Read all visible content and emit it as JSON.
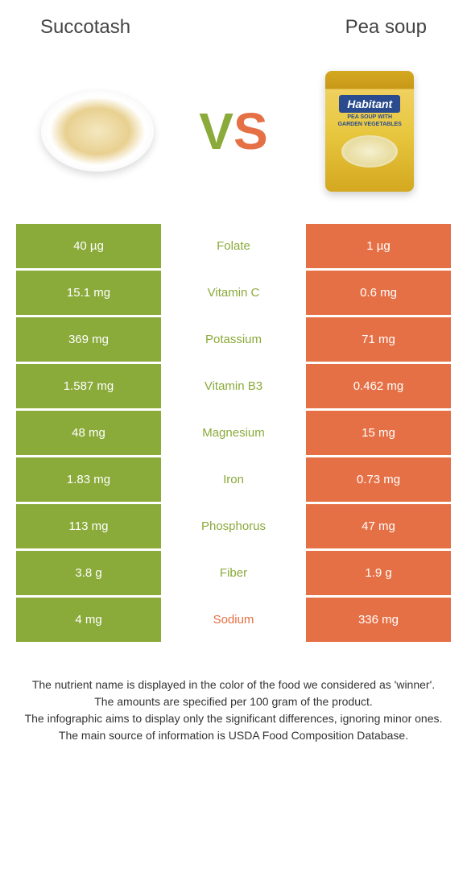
{
  "header": {
    "left": "Succotash",
    "right": "Pea soup"
  },
  "vs": {
    "v": "V",
    "s": "S"
  },
  "can": {
    "brand": "Habitant",
    "sub1": "PEA SOUP WITH",
    "sub2": "GARDEN VEGETABLES"
  },
  "colors": {
    "left": "#8aaa3a",
    "right": "#e67045"
  },
  "rows": [
    {
      "left": "40 µg",
      "mid": "Folate",
      "right": "1 µg",
      "winner": "left"
    },
    {
      "left": "15.1 mg",
      "mid": "Vitamin C",
      "right": "0.6 mg",
      "winner": "left"
    },
    {
      "left": "369 mg",
      "mid": "Potassium",
      "right": "71 mg",
      "winner": "left"
    },
    {
      "left": "1.587 mg",
      "mid": "Vitamin B3",
      "right": "0.462 mg",
      "winner": "left"
    },
    {
      "left": "48 mg",
      "mid": "Magnesium",
      "right": "15 mg",
      "winner": "left"
    },
    {
      "left": "1.83 mg",
      "mid": "Iron",
      "right": "0.73 mg",
      "winner": "left"
    },
    {
      "left": "113 mg",
      "mid": "Phosphorus",
      "right": "47 mg",
      "winner": "left"
    },
    {
      "left": "3.8 g",
      "mid": "Fiber",
      "right": "1.9 g",
      "winner": "left"
    },
    {
      "left": "4 mg",
      "mid": "Sodium",
      "right": "336 mg",
      "winner": "right"
    }
  ],
  "footnotes": [
    "The nutrient name is displayed in the color of the food we considered as 'winner'.",
    "The amounts are specified per 100 gram of the product.",
    "The infographic aims to display only the significant differences, ignoring minor ones.",
    "The main source of information is USDA Food Composition Database."
  ]
}
